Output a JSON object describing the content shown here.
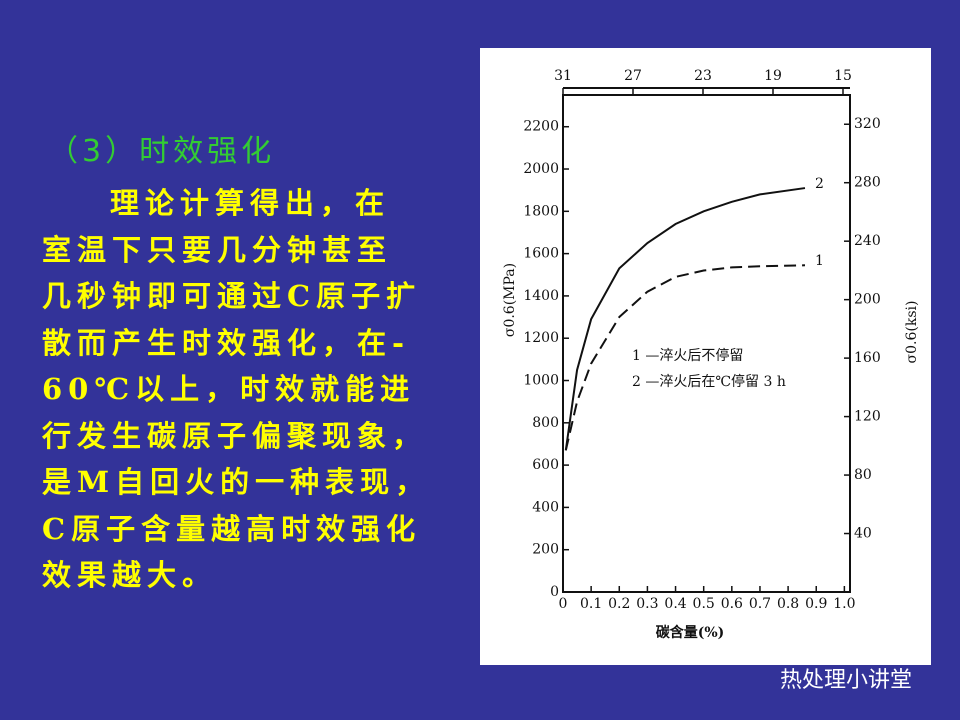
{
  "slide": {
    "heading": "（3）时效强化",
    "body_lines": [
      "理论计算得出，在",
      "室温下只要几分钟甚至",
      "几秒钟即可通过C原子扩",
      "散而产生时效强化，在-",
      "60℃以上，时效就能进",
      "行发生碳原子偏聚现象，",
      "是M自回火的一种表现，",
      "C原子含量越高时效强化",
      "效果越大。"
    ],
    "watermark": "热处理小讲堂"
  },
  "chart_data": {
    "type": "line",
    "x_label": "碳含量(%)",
    "y_label": "σ0.6(MPa)",
    "y2_label": "σ0.6(ksi)",
    "annotations": [
      "1 —淬火后不停留",
      "2 —淬火后在℃停留 3 h"
    ],
    "x": [
      0.01,
      0.05,
      0.1,
      0.2,
      0.3,
      0.4,
      0.5,
      0.6,
      0.7,
      0.86
    ],
    "series": [
      {
        "name": "1",
        "color": "#111111",
        "style": "dashed",
        "values": [
          670,
          900,
          1080,
          1300,
          1420,
          1490,
          1520,
          1535,
          1540,
          1545
        ]
      },
      {
        "name": "2",
        "color": "#111111",
        "style": "solid",
        "values": [
          670,
          1050,
          1290,
          1530,
          1650,
          1740,
          1800,
          1845,
          1880,
          1910
        ]
      }
    ],
    "xlim": [
      0,
      1.02
    ],
    "xticks": [
      0,
      0.1,
      0.2,
      0.3,
      0.4,
      0.5,
      0.6,
      0.7,
      0.8,
      0.9,
      {
        "value": 1,
        "label": "1.0"
      }
    ],
    "x2lim": [
      31,
      14.6
    ],
    "x2ticks": [
      31,
      27,
      23,
      19,
      15
    ],
    "ylim": [
      0,
      2350
    ],
    "yticks": [
      0,
      200,
      400,
      600,
      800,
      1000,
      1200,
      1400,
      1600,
      1800,
      2000,
      2200
    ],
    "y2lim": [
      0,
      340
    ],
    "y2ticks": [
      40,
      80,
      120,
      160,
      200,
      240,
      280,
      320
    ],
    "grid": false
  }
}
